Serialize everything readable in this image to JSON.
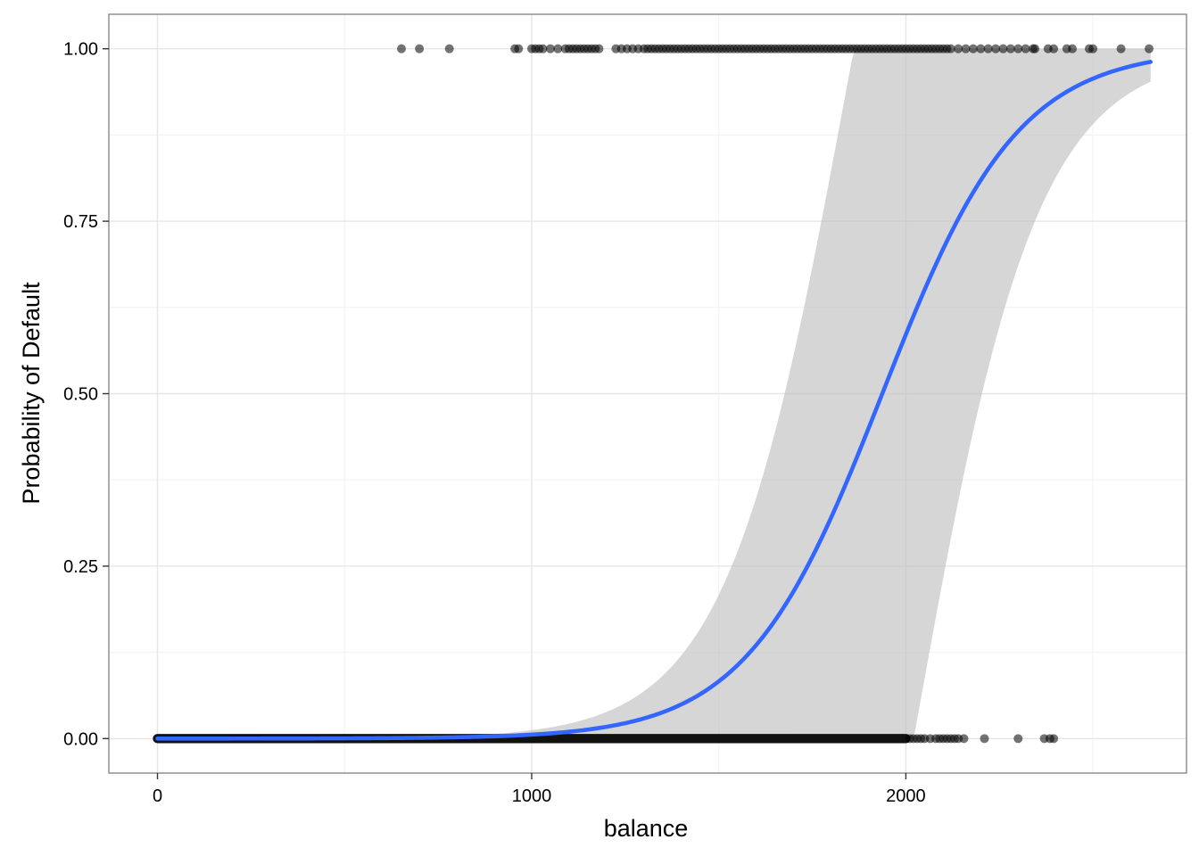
{
  "chart_data": {
    "type": "scatter",
    "title": "",
    "xlabel": "balance",
    "ylabel": "Probability of Default",
    "xlim": [
      -130,
      2750
    ],
    "ylim": [
      -0.05,
      1.05
    ],
    "x_ticks": [
      0,
      1000,
      2000
    ],
    "x_tick_labels": [
      "0",
      "1000",
      "2000"
    ],
    "y_ticks": [
      0,
      0.25,
      0.5,
      0.75,
      1
    ],
    "y_tick_labels": [
      "0.00",
      "0.25",
      "0.50",
      "0.75",
      "1.00"
    ],
    "x_minor_ticks": [
      500,
      1500,
      2500
    ],
    "y_minor_ticks": [
      0.125,
      0.375,
      0.625,
      0.875
    ],
    "grid": true,
    "legend": "none",
    "series": [
      {
        "kind": "points",
        "y": 1,
        "x": [
          652,
          700,
          780,
          955,
          965,
          1000,
          1010,
          1020,
          1030,
          1050,
          1070,
          1090,
          1100,
          1110,
          1120,
          1130,
          1140,
          1150,
          1160,
          1170,
          1180,
          1225,
          1240,
          1255,
          1270,
          1285,
          1300,
          1310,
          1320,
          1330,
          1340,
          1350,
          1360,
          1370,
          1380,
          1390,
          1400,
          1410,
          1420,
          1430,
          1440,
          1450,
          1460,
          1470,
          1480,
          1490,
          1500,
          1510,
          1520,
          1530,
          1540,
          1550,
          1560,
          1570,
          1580,
          1590,
          1600,
          1610,
          1620,
          1630,
          1640,
          1650,
          1660,
          1670,
          1680,
          1690,
          1700,
          1710,
          1720,
          1730,
          1740,
          1750,
          1760,
          1770,
          1780,
          1790,
          1800,
          1810,
          1820,
          1830,
          1840,
          1850,
          1860,
          1870,
          1880,
          1890,
          1900,
          1910,
          1920,
          1930,
          1940,
          1950,
          1960,
          1970,
          1980,
          1990,
          2000,
          2010,
          2020,
          2030,
          2040,
          2050,
          2060,
          2070,
          2080,
          2090,
          2100,
          2110,
          2120,
          2140,
          2160,
          2180,
          2200,
          2220,
          2240,
          2260,
          2280,
          2300,
          2320,
          2340,
          2345,
          2380,
          2395,
          2430,
          2445,
          2490,
          2500,
          2575,
          2650
        ]
      },
      {
        "kind": "points",
        "y": 0,
        "x_dense_range": [
          0,
          2000
        ],
        "x": [
          2010,
          2020,
          2030,
          2040,
          2050,
          2065,
          2080,
          2090,
          2100,
          2110,
          2120,
          2130,
          2140,
          2155,
          2210,
          2300,
          2370,
          2385,
          2395
        ]
      },
      {
        "kind": "fitted-curve",
        "model": "logistic",
        "intercept": -10.6513,
        "slope": 0.0054989,
        "x_range": [
          0,
          2654
        ],
        "color": "#3366ff"
      },
      {
        "kind": "confidence-band",
        "color": "#bdbdbd"
      }
    ]
  }
}
